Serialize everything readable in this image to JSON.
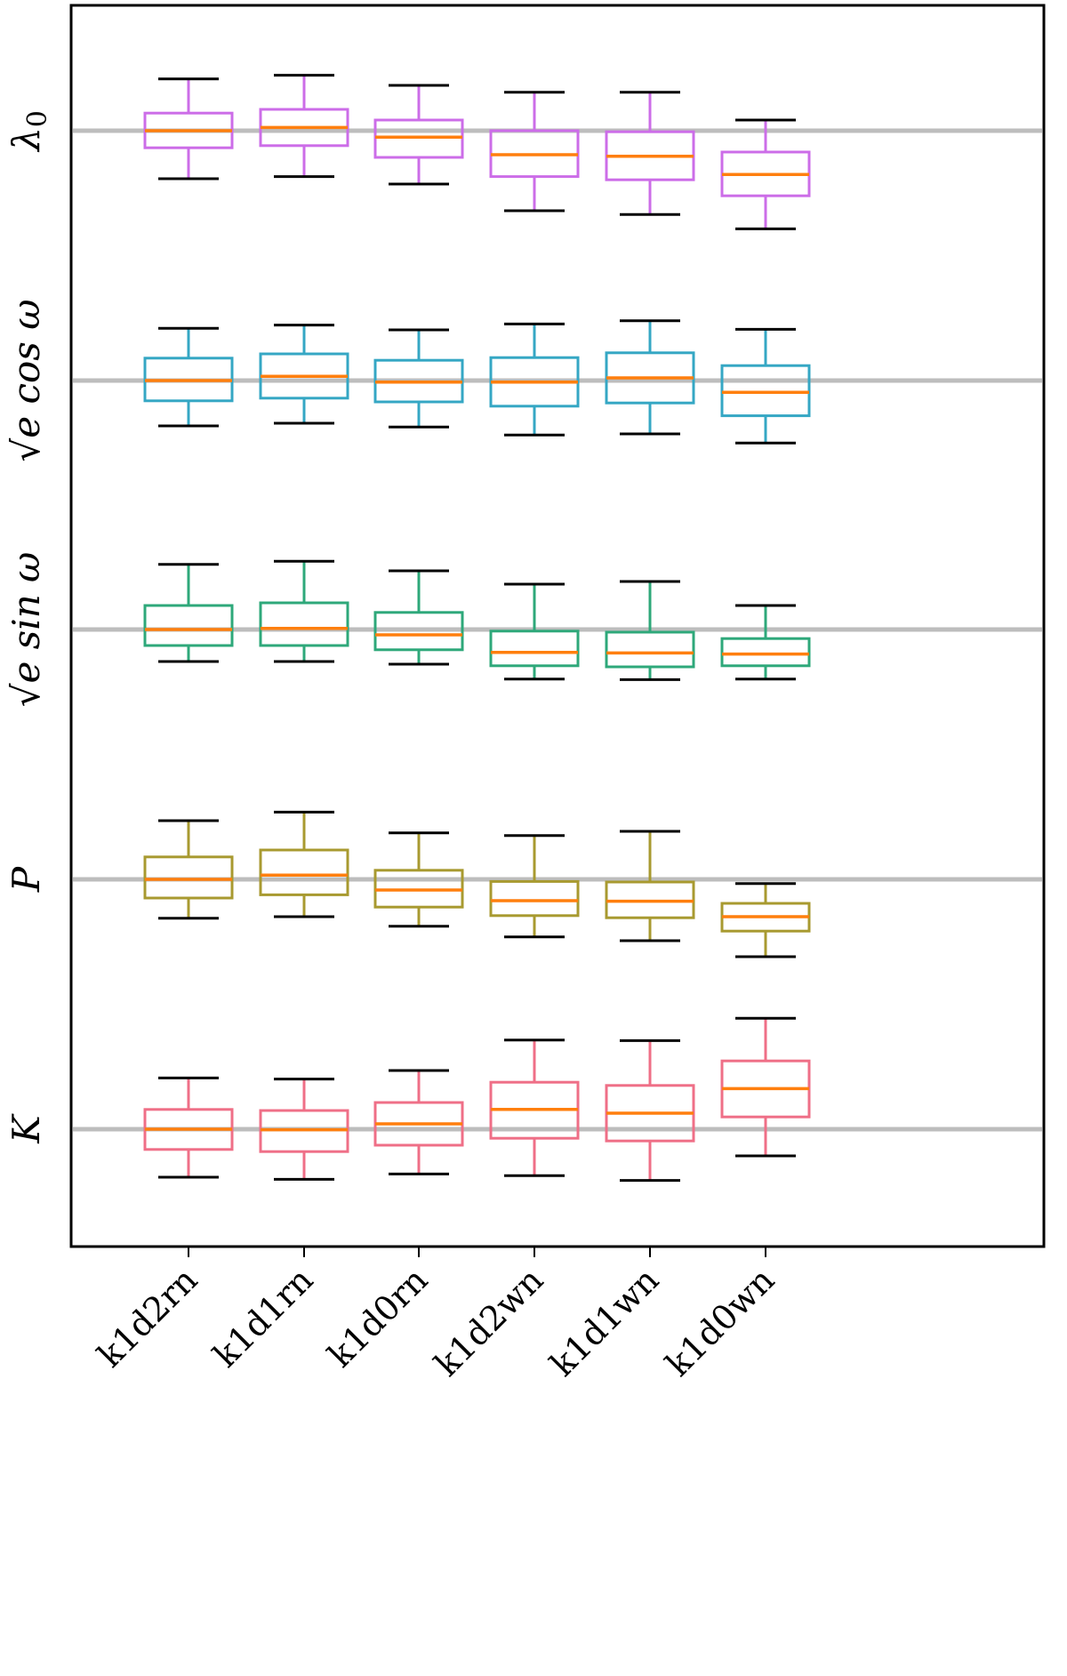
{
  "chart_data": {
    "type": "box",
    "title": "",
    "xlabel": "",
    "ylabel": "",
    "grid": false,
    "categories": [
      "k1d2rn",
      "k1d1rn",
      "k1d0rn",
      "k1d2wn",
      "k1d1wn",
      "k1d0wn"
    ],
    "parameters": [
      {
        "name": "λ0",
        "label": "λ",
        "label_sub": "0",
        "color": "#cc6de8",
        "boxes": [
          {
            "whislo": -0.9,
            "q1": -0.32,
            "med": 0.0,
            "q3": 0.33,
            "whishi": 0.97
          },
          {
            "whislo": -0.86,
            "q1": -0.28,
            "med": 0.06,
            "q3": 0.4,
            "whishi": 1.04
          },
          {
            "whislo": -1.0,
            "q1": -0.5,
            "med": -0.12,
            "q3": 0.2,
            "whishi": 0.85
          },
          {
            "whislo": -1.5,
            "q1": -0.86,
            "med": -0.45,
            "q3": 0.0,
            "whishi": 0.72
          },
          {
            "whislo": -1.57,
            "q1": -0.92,
            "med": -0.48,
            "q3": -0.02,
            "whishi": 0.72
          },
          {
            "whislo": -1.84,
            "q1": -1.22,
            "med": -0.82,
            "q3": -0.4,
            "whishi": 0.2
          }
        ]
      },
      {
        "name": "sqrt(e) cos ω",
        "label": "√e cos ω",
        "color": "#35a7c4",
        "boxes": [
          {
            "whislo": -0.85,
            "q1": -0.38,
            "med": 0.0,
            "q3": 0.42,
            "whishi": 0.98
          },
          {
            "whislo": -0.8,
            "q1": -0.33,
            "med": 0.08,
            "q3": 0.5,
            "whishi": 1.04
          },
          {
            "whislo": -0.87,
            "q1": -0.4,
            "med": -0.03,
            "q3": 0.38,
            "whishi": 0.95
          },
          {
            "whislo": -1.02,
            "q1": -0.48,
            "med": -0.03,
            "q3": 0.43,
            "whishi": 1.06
          },
          {
            "whislo": -1.0,
            "q1": -0.42,
            "med": 0.05,
            "q3": 0.52,
            "whishi": 1.12
          },
          {
            "whislo": -1.17,
            "q1": -0.66,
            "med": -0.22,
            "q3": 0.28,
            "whishi": 0.96
          }
        ]
      },
      {
        "name": "sqrt(e) sin ω",
        "label": "√e sin ω",
        "color": "#2ea87a",
        "boxes": [
          {
            "whislo": -0.6,
            "q1": -0.3,
            "med": 0.0,
            "q3": 0.45,
            "whishi": 1.22
          },
          {
            "whislo": -0.6,
            "q1": -0.3,
            "med": 0.02,
            "q3": 0.5,
            "whishi": 1.28
          },
          {
            "whislo": -0.65,
            "q1": -0.38,
            "med": -0.1,
            "q3": 0.32,
            "whishi": 1.1
          },
          {
            "whislo": -0.93,
            "q1": -0.68,
            "med": -0.43,
            "q3": -0.03,
            "whishi": 0.85
          },
          {
            "whislo": -0.94,
            "q1": -0.7,
            "med": -0.44,
            "q3": -0.05,
            "whishi": 0.9
          },
          {
            "whislo": -0.93,
            "q1": -0.68,
            "med": -0.46,
            "q3": -0.17,
            "whishi": 0.45
          }
        ]
      },
      {
        "name": "P",
        "label": "P",
        "color": "#a89a30",
        "boxes": [
          {
            "whislo": -0.73,
            "q1": -0.35,
            "med": 0.0,
            "q3": 0.42,
            "whishi": 1.1
          },
          {
            "whislo": -0.7,
            "q1": -0.29,
            "med": 0.08,
            "q3": 0.55,
            "whishi": 1.26
          },
          {
            "whislo": -0.88,
            "q1": -0.52,
            "med": -0.2,
            "q3": 0.17,
            "whishi": 0.87
          },
          {
            "whislo": -1.08,
            "q1": -0.68,
            "med": -0.4,
            "q3": -0.04,
            "whishi": 0.82
          },
          {
            "whislo": -1.15,
            "q1": -0.72,
            "med": -0.41,
            "q3": -0.05,
            "whishi": 0.9
          },
          {
            "whislo": -1.45,
            "q1": -0.97,
            "med": -0.7,
            "q3": -0.45,
            "whishi": -0.08
          }
        ]
      },
      {
        "name": "K",
        "label": "K",
        "color": "#ef6f87",
        "boxes": [
          {
            "whislo": -0.9,
            "q1": -0.38,
            "med": 0.0,
            "q3": 0.37,
            "whishi": 0.96
          },
          {
            "whislo": -0.94,
            "q1": -0.42,
            "med": -0.01,
            "q3": 0.35,
            "whishi": 0.94
          },
          {
            "whislo": -0.84,
            "q1": -0.3,
            "med": 0.1,
            "q3": 0.5,
            "whishi": 1.1
          },
          {
            "whislo": -0.87,
            "q1": -0.17,
            "med": 0.37,
            "q3": 0.88,
            "whishi": 1.67
          },
          {
            "whislo": -0.96,
            "q1": -0.22,
            "med": 0.3,
            "q3": 0.82,
            "whishi": 1.66
          },
          {
            "whislo": -0.5,
            "q1": 0.23,
            "med": 0.76,
            "q3": 1.28,
            "whishi": 2.08
          }
        ]
      }
    ],
    "reference_value": 0,
    "reference_color": "#bdbdbd",
    "median_color": "#ff7f0e",
    "whisker_cap_color": "#000000"
  }
}
